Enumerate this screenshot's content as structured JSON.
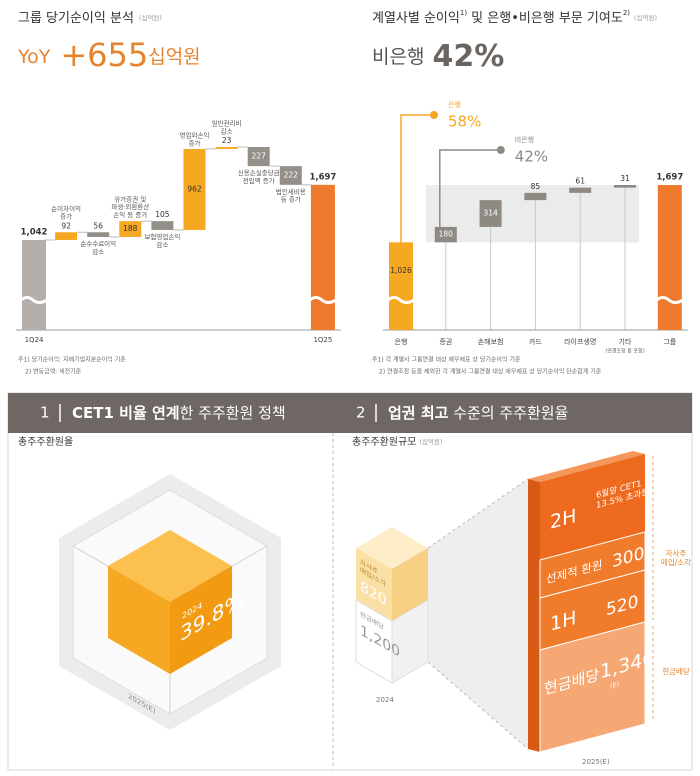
{
  "chart_data": [
    {
      "type": "waterfall",
      "title": "그룹 당기순이익 분석",
      "unit": "(십억원)",
      "headline": {
        "label": "YoY",
        "value": "+655",
        "unit": "십억원"
      },
      "categories": [
        "1Q24",
        "순이자이익\n증가",
        "순수수료이익\n감소",
        "유가증권 및\n파생·외환환산\n손익 등 증가",
        "보험영업손익\n감소",
        "영업외손익\n증가",
        "일반관리비\n감소",
        "신용손실충당금\n전입액 증가",
        "법인세비용\n등 증가",
        "1Q25"
      ],
      "measures": [
        "total",
        "relative",
        "relative",
        "relative",
        "relative",
        "relative",
        "relative",
        "relative",
        "relative",
        "total"
      ],
      "values": [
        1042,
        92,
        -56,
        188,
        -105,
        962,
        23,
        -227,
        -222,
        1697
      ],
      "value_labels": [
        "1,042",
        "92",
        "56",
        "188",
        "105",
        "962",
        "23",
        "227",
        "222",
        "1,697"
      ],
      "colors": [
        "#b5aeaa",
        "#f7a823",
        "#958f8a",
        "#f7a823",
        "#958f8a",
        "#f7a823",
        "#f7a823",
        "#958f8a",
        "#958f8a",
        "#ee7a2e"
      ],
      "footnotes": [
        "주1) 당기순이익: 지배기업지분순이익 기준",
        "2) 변동금액: 세전기준"
      ]
    },
    {
      "type": "contribution",
      "title": "계열사별 순이익",
      "title_note1": "1)",
      "title_mid": " 및 은행•비은행 부문 기여도",
      "title_note2": "2)",
      "unit": "(십억원)",
      "headline": {
        "label": "비은행",
        "value": "42%"
      },
      "categories": [
        "은행",
        "증권",
        "손해보험",
        "카드",
        "라이프생명",
        "기타",
        "그룹"
      ],
      "category_sublabels": [
        null,
        null,
        null,
        null,
        null,
        "(연결조정 등 포함)",
        null
      ],
      "measures": [
        "total",
        "relative",
        "relative",
        "relative",
        "relative",
        "relative",
        "total"
      ],
      "values": [
        1026,
        180,
        314,
        85,
        61,
        31,
        1697
      ],
      "value_labels": [
        "1,026",
        "180",
        "314",
        "85",
        "61",
        "31",
        "1,697"
      ],
      "colors": [
        "#f7a823",
        "#8f8984",
        "#8f8984",
        "#8f8984",
        "#8f8984",
        "#8f8984",
        "#ee7a2e"
      ],
      "annotations": [
        {
          "label": "은행",
          "text": "58%",
          "color": "#f7a823"
        },
        {
          "label": "비은행",
          "text": "42%",
          "color": "#8f8984"
        }
      ],
      "footnotes": [
        "주1) 각 계열사 그룹연결 대상 재무제표 상 당기순이익 기준",
        "2) 연결조정 등을 제외한 각 계열사 그룹연결 대상 재무제표 상 당기순이익 단순합계 기준"
      ]
    }
  ],
  "sections": [
    {
      "number": "1",
      "bold": "CET1 비율 연계",
      "text": "한 주주환원 정책"
    },
    {
      "number": "2",
      "bold": "업권 최고",
      "text": " 수준의 주주환원율"
    }
  ],
  "payout_ratio": {
    "title": "총주주환원율",
    "inner_year": "2024",
    "inner_value": "39.8%",
    "outer_year": "2025(E)"
  },
  "payout_amount": {
    "title": "총주주환원규모",
    "unit": "(십억원)",
    "y2024": {
      "year": "2024",
      "buyback_label": "자사주\n매입/소각",
      "buyback": "820",
      "dividend_label": "현금배당",
      "dividend": "1,200"
    },
    "y2025": {
      "year": "2025(E)",
      "h2_label": "2H",
      "h2_note": "6월말 CET1\n13.5% 초과분",
      "early_label": "선제적 환원",
      "early": "300",
      "h1_label": "1H",
      "h1": "520",
      "dividend_label": "현금배당",
      "dividend": "1,340",
      "dividend_note": "(E)"
    },
    "side_labels": {
      "buyback": "자사주\n매입/소각",
      "dividend": "현금배당"
    }
  }
}
